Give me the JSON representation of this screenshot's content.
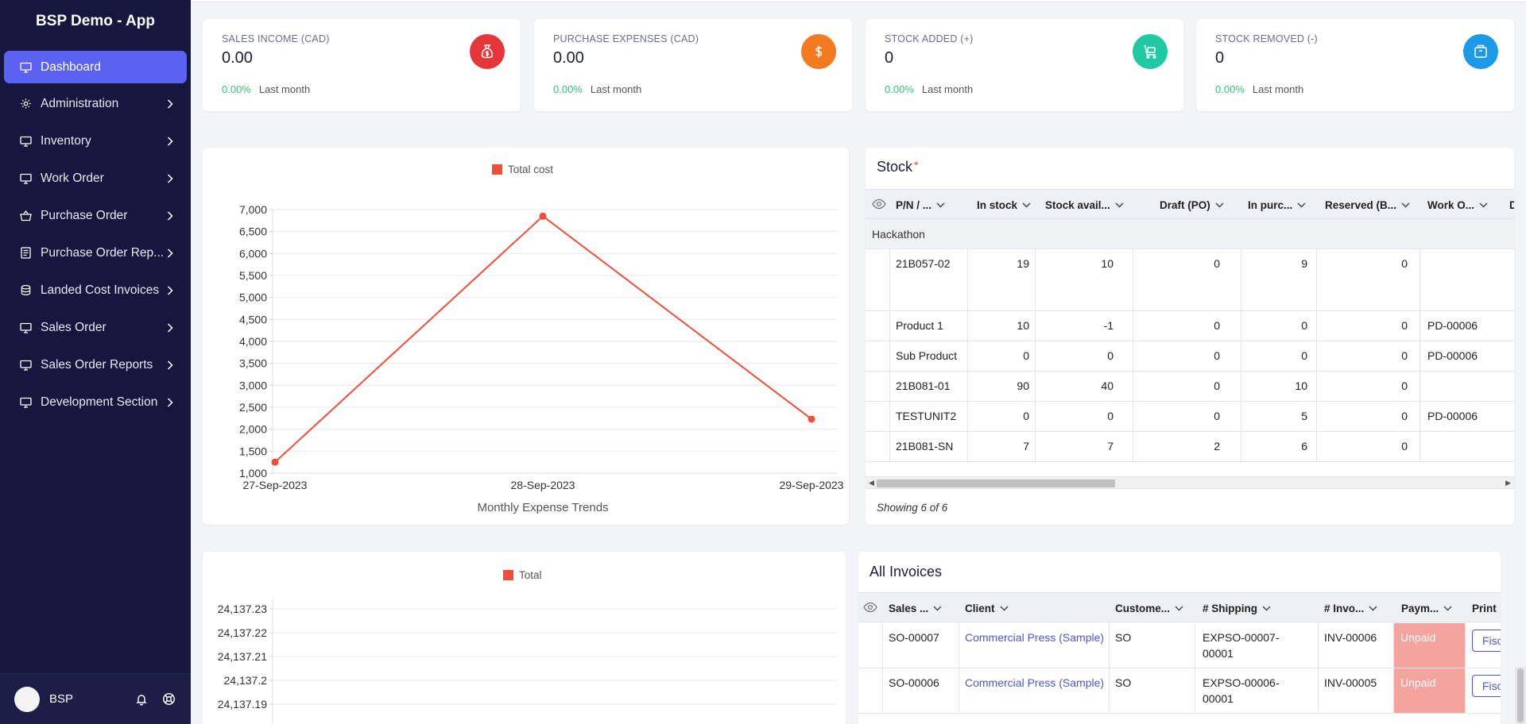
{
  "app": {
    "title": "BSP Demo - App"
  },
  "sidebar": {
    "items": [
      {
        "label": "Dashboard",
        "icon": "monitor-icon",
        "active": true
      },
      {
        "label": "Administration",
        "icon": "gear-icon"
      },
      {
        "label": "Inventory",
        "icon": "monitor-icon"
      },
      {
        "label": "Work Order",
        "icon": "monitor-icon"
      },
      {
        "label": "Purchase Order",
        "icon": "basket-icon"
      },
      {
        "label": "Purchase Order Rep...",
        "icon": "report-icon"
      },
      {
        "label": "Landed Cost Invoices",
        "icon": "coins-icon"
      },
      {
        "label": "Sales Order",
        "icon": "monitor-icon"
      },
      {
        "label": "Sales Order Reports",
        "icon": "monitor-icon"
      },
      {
        "label": "Development Section",
        "icon": "monitor-icon"
      }
    ],
    "user": "BSP"
  },
  "kpis": [
    {
      "label": "SALES INCOME (CAD)",
      "value": "0.00",
      "pct": "0.00%",
      "period": "Last month",
      "color": "#e5373a",
      "icon": "money-bag-icon"
    },
    {
      "label": "PURCHASE EXPENSES (CAD)",
      "value": "0.00",
      "pct": "0.00%",
      "period": "Last month",
      "color": "#f37a1f",
      "icon": "dollar-icon"
    },
    {
      "label": "STOCK ADDED (+)",
      "value": "0",
      "pct": "0.00%",
      "period": "Last month",
      "color": "#1fc9a3",
      "icon": "cart-icon"
    },
    {
      "label": "STOCK REMOVED (-)",
      "value": "0",
      "pct": "0.00%",
      "period": "Last month",
      "color": "#1a9ae8",
      "icon": "box-icon"
    }
  ],
  "expense_chart": {
    "legend": "Total cost",
    "xlabel": "Monthly Expense Trends",
    "chart_data": {
      "type": "line",
      "categories": [
        "27-Sep-2023",
        "28-Sep-2023",
        "29-Sep-2023"
      ],
      "series": [
        {
          "name": "Total cost",
          "values": [
            1250,
            6850,
            2230
          ]
        }
      ],
      "xlabel": "Monthly Expense Trends",
      "ylim": [
        1000,
        7000
      ],
      "yticks": [
        "7,000",
        "6,500",
        "6,000",
        "5,500",
        "5,000",
        "4,500",
        "4,000",
        "3,500",
        "3,000",
        "2,500",
        "2,000",
        "1,500",
        "1,000"
      ],
      "grid": true,
      "legend": "top-center"
    }
  },
  "stock": {
    "title": "Stock",
    "required_mark": "*",
    "columns": [
      "P/N / ...",
      "In stock",
      "Stock avail...",
      "Draft (PO)",
      "In purc...",
      "Reserved (B...",
      "Work O...",
      "D"
    ],
    "group": "Hackathon",
    "rows": [
      [
        "21B057-02",
        "19",
        "10",
        "0",
        "9",
        "0",
        ""
      ],
      [
        "Product 1",
        "10",
        "-1",
        "0",
        "0",
        "0",
        "PD-00006"
      ],
      [
        "Sub Product",
        "0",
        "0",
        "0",
        "0",
        "0",
        "PD-00006"
      ],
      [
        "21B081-01",
        "90",
        "40",
        "0",
        "10",
        "0",
        ""
      ],
      [
        "TESTUNIT2",
        "0",
        "0",
        "0",
        "5",
        "0",
        "PD-00006"
      ],
      [
        "21B081-SN",
        "7",
        "7",
        "2",
        "6",
        "0",
        ""
      ]
    ],
    "showing": "Showing 6 of 6"
  },
  "total_chart": {
    "legend": "Total",
    "yticks": [
      "24,137.23",
      "24,137.22",
      "24,137.21",
      "24,137.2",
      "24,137.19"
    ]
  },
  "invoices": {
    "title": "All Invoices",
    "columns": [
      "Sales ...",
      "Client",
      "Custome...",
      "# Shipping",
      "# Invo...",
      "Paym...",
      "Print"
    ],
    "rows": [
      {
        "sales": "SO-00007",
        "client": "Commercial Press (Sample)",
        "customer": "SO",
        "shipping1": "EXPSO-00007-",
        "shipping2": "00001",
        "invoice": "INV-00006",
        "payment": "Unpaid",
        "print": "Fisc"
      },
      {
        "sales": "SO-00006",
        "client": "Commercial Press (Sample)",
        "customer": "SO",
        "shipping1": "EXPSO-00006-",
        "shipping2": "00001",
        "invoice": "INV-00005",
        "payment": "Unpaid",
        "print": "Fisc"
      }
    ]
  }
}
